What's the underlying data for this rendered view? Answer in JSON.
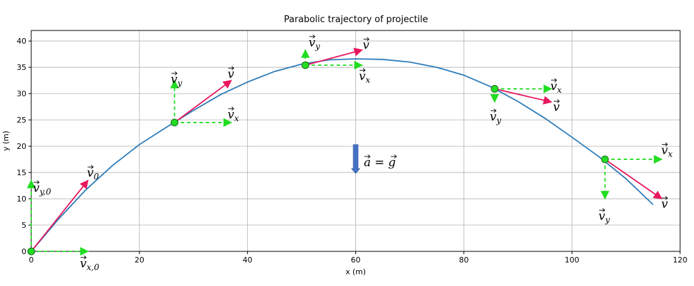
{
  "chart_data": {
    "type": "line",
    "title": "Parabolic trajectory of projectile",
    "xlabel": "x (m)",
    "ylabel": "y (m)",
    "xlim": [
      0,
      120
    ],
    "ylim": [
      0,
      42
    ],
    "xticks": [
      0,
      20,
      40,
      60,
      80,
      100,
      120
    ],
    "yticks": [
      0,
      5,
      10,
      15,
      20,
      25,
      30,
      35,
      40
    ],
    "grid": true,
    "trajectory": {
      "color": "#2b7bb9",
      "x": [
        0,
        5,
        10,
        15,
        20,
        25,
        30,
        35,
        40,
        45,
        50,
        55,
        60,
        65,
        70,
        75,
        80,
        85,
        90,
        95,
        100,
        105,
        110,
        115
      ],
      "y": [
        0,
        6.1,
        11.6,
        16.3,
        20.3,
        23.6,
        26.8,
        29.8,
        32.2,
        34.2,
        35.6,
        36.4,
        36.6,
        36.5,
        36.0,
        35.0,
        33.5,
        31.3,
        28.5,
        25.3,
        21.7,
        18.0,
        13.8,
        8.9
      ]
    },
    "points": [
      {
        "x": 0,
        "y": 0
      },
      {
        "x": 26.5,
        "y": 24.5
      },
      {
        "x": 50.7,
        "y": 35.4
      },
      {
        "x": 85.7,
        "y": 30.9
      },
      {
        "x": 106.1,
        "y": 17.5
      }
    ],
    "point_color": "#22dd22",
    "velocity_color": "#e8175d",
    "component_color": "#22dd22",
    "vectors": [
      {
        "x0": 0,
        "y0": 0,
        "dx": 10.5,
        "dy": 0,
        "kind": "component"
      },
      {
        "x0": 0,
        "y0": 0,
        "dx": 0,
        "dy": 13.5,
        "kind": "component"
      },
      {
        "x0": 0,
        "y0": 0,
        "dx": 10.5,
        "dy": 13.5,
        "kind": "velocity"
      },
      {
        "x0": 26.5,
        "y0": 24.5,
        "dx": 10.5,
        "dy": 0,
        "kind": "component"
      },
      {
        "x0": 26.5,
        "y0": 24.5,
        "dx": 0,
        "dy": 8,
        "kind": "component"
      },
      {
        "x0": 26.5,
        "y0": 24.5,
        "dx": 10.5,
        "dy": 8,
        "kind": "velocity"
      },
      {
        "x0": 50.7,
        "y0": 35.4,
        "dx": 10.5,
        "dy": 0,
        "kind": "component"
      },
      {
        "x0": 50.7,
        "y0": 35.4,
        "dx": 0,
        "dy": 2.9,
        "kind": "component"
      },
      {
        "x0": 50.7,
        "y0": 35.4,
        "dx": 10.5,
        "dy": 2.9,
        "kind": "velocity"
      },
      {
        "x0": 85.7,
        "y0": 30.9,
        "dx": 10.5,
        "dy": 0,
        "kind": "component"
      },
      {
        "x0": 85.7,
        "y0": 30.9,
        "dx": 0,
        "dy": -2.5,
        "kind": "component"
      },
      {
        "x0": 85.7,
        "y0": 30.9,
        "dx": 10.5,
        "dy": -2.5,
        "kind": "velocity"
      },
      {
        "x0": 106.1,
        "y0": 17.5,
        "dx": 10.5,
        "dy": 0,
        "kind": "component"
      },
      {
        "x0": 106.1,
        "y0": 17.5,
        "dx": 0,
        "dy": -7.5,
        "kind": "component"
      },
      {
        "x0": 106.1,
        "y0": 17.5,
        "dx": 10.5,
        "dy": -7.5,
        "kind": "velocity"
      }
    ],
    "acceleration_arrow": {
      "x": 60,
      "y_start": 20.3,
      "y_end": 14.8,
      "color": "#4472c4"
    },
    "labels": [
      {
        "x": 0.3,
        "y": 11.3,
        "base": "v",
        "sub": "y,0"
      },
      {
        "x": 9.0,
        "y": -3.0,
        "base": "v",
        "sub": "x,0"
      },
      {
        "x": 10.3,
        "y": 14.2,
        "base": "v",
        "sub": "0"
      },
      {
        "x": 25.8,
        "y": 32.0,
        "base": "v",
        "sub": "y"
      },
      {
        "x": 36.3,
        "y": 33.0,
        "base": "v",
        "sub": ""
      },
      {
        "x": 36.3,
        "y": 25.3,
        "base": "v",
        "sub": "x"
      },
      {
        "x": 51.3,
        "y": 39.0,
        "base": "v",
        "sub": "y"
      },
      {
        "x": 61.3,
        "y": 38.5,
        "base": "v",
        "sub": ""
      },
      {
        "x": 60.6,
        "y": 32.6,
        "base": "v",
        "sub": "x"
      },
      {
        "x": 96.0,
        "y": 30.7,
        "base": "v",
        "sub": "x"
      },
      {
        "x": 96.5,
        "y": 26.7,
        "base": "v",
        "sub": ""
      },
      {
        "x": 84.8,
        "y": 24.9,
        "base": "v",
        "sub": "y"
      },
      {
        "x": 116.5,
        "y": 18.5,
        "base": "v",
        "sub": "x"
      },
      {
        "x": 116.5,
        "y": 8.3,
        "base": "v",
        "sub": ""
      },
      {
        "x": 104.9,
        "y": 6.0,
        "base": "v",
        "sub": "y"
      }
    ],
    "annotation": {
      "x": 61.5,
      "y": 16.2,
      "text": "a = g"
    }
  }
}
